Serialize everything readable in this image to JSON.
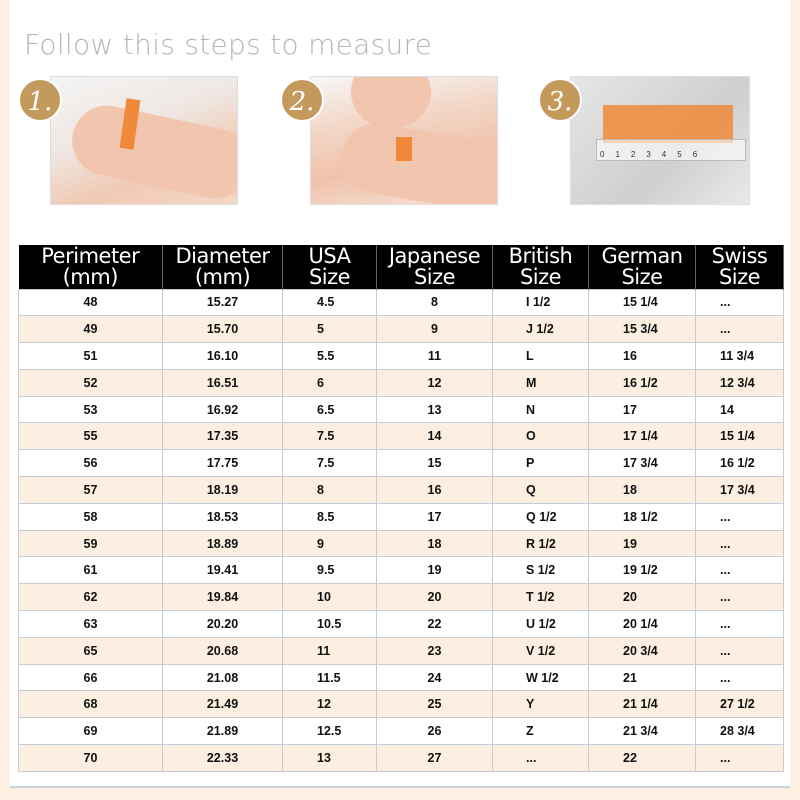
{
  "title": "Follow this steps to measure",
  "steps": [
    {
      "number": "1."
    },
    {
      "number": "2."
    },
    {
      "number": "3."
    }
  ],
  "ruler_text": "0123456",
  "colors": {
    "badge": "#c49a5c",
    "header": "#000000",
    "row_alt": "#fcefe1",
    "page_bg": "#fdf0e3",
    "tape": "#f08a3a"
  },
  "table": {
    "headers": [
      [
        "Perimeter",
        "(mm)"
      ],
      [
        "Diameter",
        "(mm)"
      ],
      [
        "USA",
        "Size"
      ],
      [
        "Japanese",
        "Size"
      ],
      [
        "British",
        "Size"
      ],
      [
        "German",
        "Size"
      ],
      [
        "Swiss",
        "Size"
      ]
    ],
    "rows": [
      [
        "48",
        "15.27",
        "4.5",
        "8",
        "I 1/2",
        "15 1/4",
        "..."
      ],
      [
        "49",
        "15.70",
        "5",
        "9",
        "J 1/2",
        "15 3/4",
        "..."
      ],
      [
        "51",
        "16.10",
        "5.5",
        "11",
        "L",
        "16",
        "11 3/4"
      ],
      [
        "52",
        "16.51",
        "6",
        "12",
        "M",
        "16 1/2",
        "12 3/4"
      ],
      [
        "53",
        "16.92",
        "6.5",
        "13",
        "N",
        "17",
        "14"
      ],
      [
        "55",
        "17.35",
        "7.5",
        "14",
        "O",
        "17 1/4",
        "15 1/4"
      ],
      [
        "56",
        "17.75",
        "7.5",
        "15",
        "P",
        "17 3/4",
        "16 1/2"
      ],
      [
        "57",
        "18.19",
        "8",
        "16",
        "Q",
        "18",
        "17 3/4"
      ],
      [
        "58",
        "18.53",
        "8.5",
        "17",
        "Q 1/2",
        "18 1/2",
        "..."
      ],
      [
        "59",
        "18.89",
        "9",
        "18",
        "R 1/2",
        "19",
        "..."
      ],
      [
        "61",
        "19.41",
        "9.5",
        "19",
        "S 1/2",
        "19 1/2",
        "..."
      ],
      [
        "62",
        "19.84",
        "10",
        "20",
        "T 1/2",
        "20",
        "..."
      ],
      [
        "63",
        "20.20",
        "10.5",
        "22",
        "U 1/2",
        "20 1/4",
        "..."
      ],
      [
        "65",
        "20.68",
        "11",
        "23",
        "V 1/2",
        "20 3/4",
        "..."
      ],
      [
        "66",
        "21.08",
        "11.5",
        "24",
        "W 1/2",
        "21",
        "..."
      ],
      [
        "68",
        "21.49",
        "12",
        "25",
        "Y",
        "21 1/4",
        "27 1/2"
      ],
      [
        "69",
        "21.89",
        "12.5",
        "26",
        "Z",
        "21 3/4",
        "28 3/4"
      ],
      [
        "70",
        "22.33",
        "13",
        "27",
        "...",
        "22",
        "..."
      ]
    ]
  }
}
